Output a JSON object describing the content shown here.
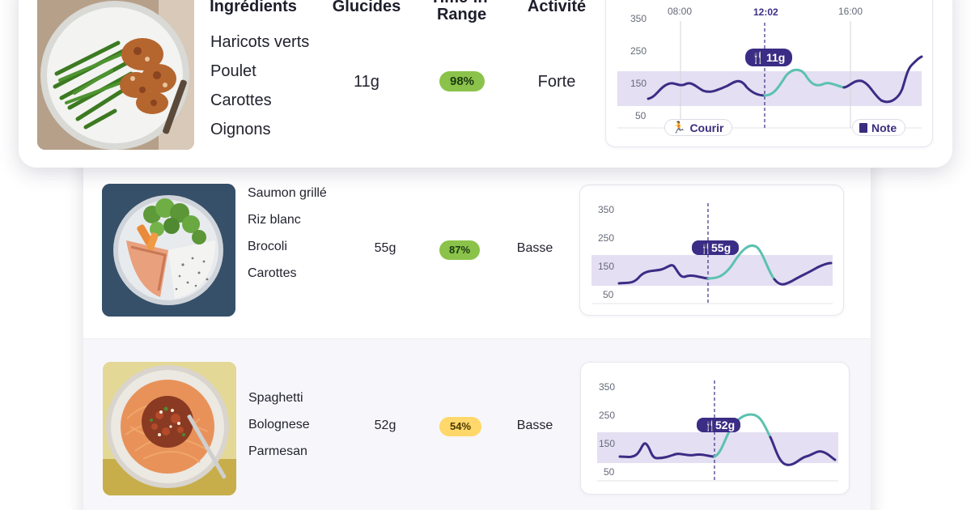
{
  "colors": {
    "accent_purple": "#3b2c85",
    "target_band": "#e4dff2",
    "post_meal_teal": "#5cc1b0",
    "tir_high": "#8bc34a",
    "tir_low": "#ffd76a"
  },
  "headers": {
    "ingredients": "Ingrédients",
    "carbs": "Glucides",
    "tir": "Time-in-Range",
    "activity": "Activité"
  },
  "meals": [
    {
      "image_icon": "green-beans-chicken-plate",
      "ingredients": [
        "Haricots verts",
        "Poulet",
        "Carottes",
        "Oignons"
      ],
      "carbs": "11g",
      "tir": "98%",
      "tir_level": "high",
      "activity": "Forte",
      "chart": {
        "y_ticks": [
          "350",
          "250",
          "150",
          "50"
        ],
        "x_ticks": [
          "08:00",
          "12:02",
          "16:00"
        ],
        "meal_tag": "11g",
        "chips": [
          {
            "icon": "running-icon",
            "label": "Courir"
          },
          {
            "icon": "note-icon",
            "label": "Note"
          }
        ]
      }
    },
    {
      "image_icon": "salmon-rice-broccoli-plate",
      "ingredients": [
        "Saumon grillé",
        "Riz blanc",
        "Brocoli",
        "Carottes"
      ],
      "carbs": "55g",
      "tir": "87%",
      "tir_level": "high",
      "activity": "Basse",
      "chart": {
        "y_ticks": [
          "350",
          "250",
          "150",
          "50"
        ],
        "meal_tag": "55g"
      }
    },
    {
      "image_icon": "spaghetti-bolognese-plate",
      "ingredients": [
        "Spaghetti",
        "Bolognese",
        "Parmesan"
      ],
      "carbs": "52g",
      "tir": "54%",
      "tir_level": "low",
      "activity": "Basse",
      "chart": {
        "y_ticks": [
          "350",
          "250",
          "150",
          "50"
        ],
        "meal_tag": "52g"
      }
    }
  ]
}
